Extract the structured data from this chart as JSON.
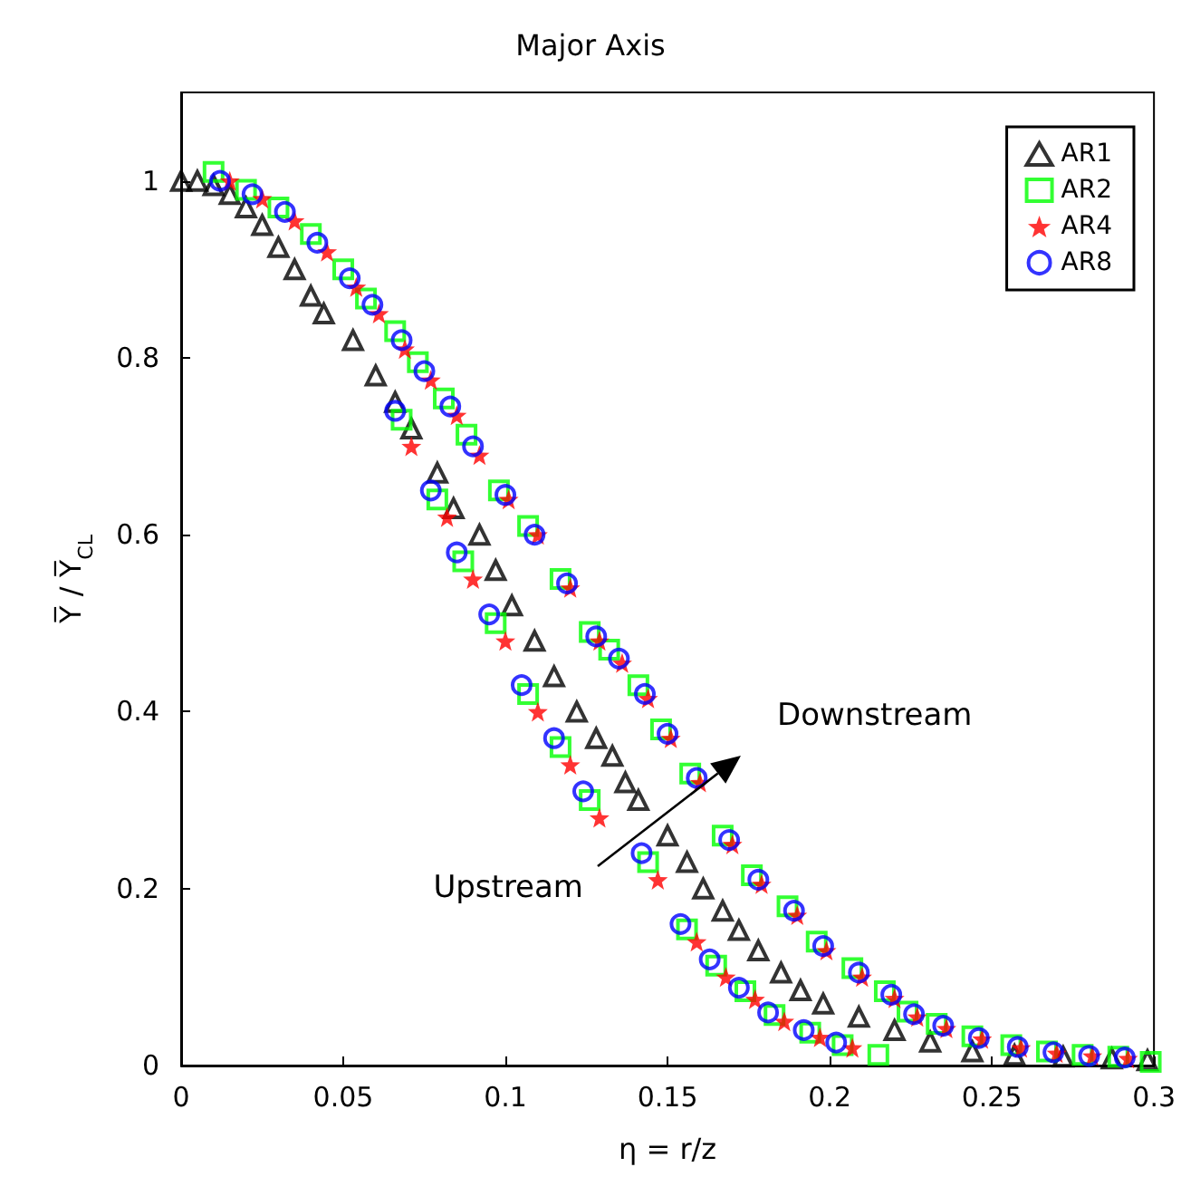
{
  "chart_data": {
    "type": "scatter",
    "title": "Major Axis",
    "xlabel": "η = r/z",
    "ylabel": "Y̅ / Y̅$_{CL}$",
    "xlim": [
      0,
      0.3
    ],
    "xticks": [
      0,
      0.05,
      0.1,
      0.15,
      0.2,
      0.25,
      0.3
    ],
    "ylim": [
      0,
      1.1
    ],
    "yticks": [
      0,
      0.2,
      0.4,
      0.6,
      0.8,
      1
    ],
    "grid": false,
    "legend": "top right",
    "annotations": [
      "Upstream",
      "Downstream"
    ],
    "series": [
      {
        "name": "AR1",
        "color": "#000000",
        "marker": "triangle",
        "x": [
          0,
          0.005,
          0.01,
          0.015,
          0.02,
          0.025,
          0.03,
          0.035,
          0.04,
          0.044,
          0.053,
          0.06,
          0.066,
          0.071,
          0.079,
          0.084,
          0.092,
          0.097,
          0.102,
          0.109,
          0.115,
          0.122,
          0.128,
          0.133,
          0.137,
          0.141,
          0.15,
          0.156,
          0.161,
          0.167,
          0.172,
          0.178,
          0.185,
          0.191,
          0.198,
          0.209,
          0.22,
          0.231,
          0.244,
          0.257,
          0.272,
          0.287,
          0.298
        ],
        "values": [
          1,
          1,
          0.995,
          0.985,
          0.97,
          0.95,
          0.925,
          0.9,
          0.87,
          0.85,
          0.82,
          0.78,
          0.75,
          0.72,
          0.67,
          0.63,
          0.6,
          0.56,
          0.52,
          0.48,
          0.44,
          0.4,
          0.37,
          0.35,
          0.32,
          0.3,
          0.26,
          0.23,
          0.2,
          0.175,
          0.153,
          0.13,
          0.105,
          0.085,
          0.07,
          0.055,
          0.04,
          0.027,
          0.016,
          0.012,
          0.01,
          0.008,
          0.006
        ]
      },
      {
        "name": "AR2",
        "color": "#00ff00",
        "marker": "square",
        "x": [
          0.01,
          0.02,
          0.03,
          0.04,
          0.05,
          0.057,
          0.066,
          0.073,
          0.081,
          0.088,
          0.098,
          0.107,
          0.117,
          0.126,
          0.132,
          0.141,
          0.148,
          0.157,
          0.167,
          0.176,
          0.187,
          0.196,
          0.207,
          0.217,
          0.224,
          0.233,
          0.244,
          0.256,
          0.267,
          0.278,
          0.289,
          0.299,
          0.068,
          0.079,
          0.087,
          0.097,
          0.107,
          0.117,
          0.126,
          0.144,
          0.156,
          0.165,
          0.174,
          0.183,
          0.194,
          0.204,
          0.215
        ],
        "values": [
          1.01,
          0.99,
          0.97,
          0.94,
          0.9,
          0.867,
          0.83,
          0.795,
          0.754,
          0.713,
          0.65,
          0.61,
          0.55,
          0.49,
          0.47,
          0.43,
          0.38,
          0.33,
          0.26,
          0.215,
          0.18,
          0.14,
          0.11,
          0.084,
          0.061,
          0.047,
          0.033,
          0.023,
          0.016,
          0.012,
          0.01,
          0.004,
          0.73,
          0.64,
          0.57,
          0.5,
          0.42,
          0.36,
          0.3,
          0.23,
          0.154,
          0.113,
          0.084,
          0.057,
          0.037,
          0.023,
          0.012
        ]
      },
      {
        "name": "AR4",
        "color": "#ff0000",
        "marker": "star",
        "x": [
          0.015,
          0.025,
          0.035,
          0.045,
          0.054,
          0.061,
          0.069,
          0.077,
          0.085,
          0.092,
          0.101,
          0.11,
          0.12,
          0.129,
          0.136,
          0.144,
          0.151,
          0.16,
          0.17,
          0.179,
          0.19,
          0.199,
          0.21,
          0.22,
          0.227,
          0.236,
          0.247,
          0.259,
          0.27,
          0.281,
          0.292,
          0.071,
          0.082,
          0.09,
          0.1,
          0.11,
          0.12,
          0.129,
          0.147,
          0.159,
          0.168,
          0.177,
          0.186,
          0.197,
          0.207
        ],
        "values": [
          1,
          0.98,
          0.955,
          0.92,
          0.88,
          0.85,
          0.81,
          0.775,
          0.735,
          0.69,
          0.64,
          0.6,
          0.54,
          0.48,
          0.455,
          0.415,
          0.37,
          0.32,
          0.25,
          0.205,
          0.17,
          0.13,
          0.1,
          0.076,
          0.055,
          0.042,
          0.03,
          0.02,
          0.014,
          0.011,
          0.008,
          0.7,
          0.62,
          0.55,
          0.48,
          0.4,
          0.34,
          0.28,
          0.21,
          0.14,
          0.1,
          0.075,
          0.05,
          0.032,
          0.02
        ]
      },
      {
        "name": "AR8",
        "color": "#0000ff",
        "marker": "circle",
        "x": [
          0.012,
          0.022,
          0.032,
          0.042,
          0.052,
          0.059,
          0.068,
          0.075,
          0.083,
          0.09,
          0.1,
          0.109,
          0.119,
          0.128,
          0.135,
          0.143,
          0.15,
          0.159,
          0.169,
          0.178,
          0.189,
          0.198,
          0.209,
          0.219,
          0.226,
          0.235,
          0.246,
          0.258,
          0.269,
          0.28,
          0.291,
          0.066,
          0.077,
          0.085,
          0.095,
          0.105,
          0.115,
          0.124,
          0.142,
          0.154,
          0.163,
          0.172,
          0.181,
          0.192,
          0.202
        ],
        "values": [
          1,
          0.985,
          0.965,
          0.93,
          0.89,
          0.86,
          0.82,
          0.785,
          0.745,
          0.7,
          0.645,
          0.6,
          0.545,
          0.485,
          0.46,
          0.42,
          0.375,
          0.325,
          0.255,
          0.21,
          0.175,
          0.135,
          0.105,
          0.08,
          0.058,
          0.045,
          0.031,
          0.021,
          0.015,
          0.011,
          0.009,
          0.74,
          0.65,
          0.58,
          0.51,
          0.43,
          0.37,
          0.31,
          0.24,
          0.16,
          0.12,
          0.088,
          0.06,
          0.04,
          0.026
        ]
      }
    ]
  }
}
